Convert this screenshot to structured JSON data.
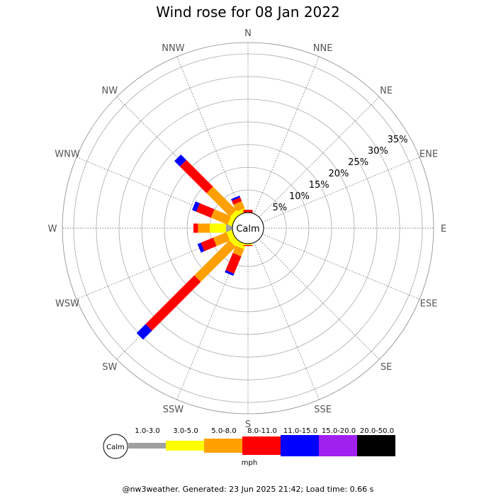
{
  "chart_data": {
    "type": "windrose",
    "title": "Wind rose for 08 Jan 2022",
    "directions": [
      "N",
      "NNE",
      "NE",
      "ENE",
      "E",
      "ESE",
      "SE",
      "SSE",
      "S",
      "SSW",
      "SW",
      "WSW",
      "W",
      "WNW",
      "NW",
      "NNW"
    ],
    "ring_labels": [
      "5%",
      "10%",
      "15%",
      "20%",
      "25%",
      "30%",
      "35%"
    ],
    "ring_values": [
      5,
      10,
      15,
      20,
      25,
      30,
      35
    ],
    "r_max": 37.5,
    "calm_label": "Calm",
    "speed_bins": [
      {
        "range": "1.0-3.0",
        "color": "#a0a0a0"
      },
      {
        "range": "3.0-5.0",
        "color": "#ffff00"
      },
      {
        "range": "5.0-8.0",
        "color": "#ffa000"
      },
      {
        "range": "8.0-11.0",
        "color": "#ff0000"
      },
      {
        "range": "11.0-15.0",
        "color": "#0000ff"
      },
      {
        "range": "15.0-20.0",
        "color": "#a020f0"
      },
      {
        "range": "20.0-50.0",
        "color": "#000000"
      }
    ],
    "units": "mph",
    "series_cumulative": {
      "NNW": [
        0.0,
        0.9,
        2.6,
        3.5,
        3.9,
        3.9,
        3.9
      ],
      "N": [
        0.0,
        0.0,
        0.0,
        0.6,
        0.6,
        0.6,
        0.6
      ],
      "W": [
        1.4,
        5.0,
        7.6,
        8.6,
        8.6,
        8.6,
        8.6
      ],
      "WNW": [
        0.0,
        1.0,
        5.0,
        8.5,
        9.5,
        9.5,
        9.5
      ],
      "NW": [
        0.0,
        1.2,
        8.5,
        16.8,
        18.5,
        18.5,
        18.5
      ],
      "WSW": [
        0.0,
        1.3,
        4.5,
        7.4,
        8.2,
        8.2,
        8.2
      ],
      "SW": [
        0.0,
        1.4,
        12.3,
        27.5,
        30.3,
        30.3,
        30.3
      ],
      "SSW": [
        0.0,
        1.2,
        2.9,
        7.0,
        7.5,
        7.5,
        7.5
      ],
      "S": [
        0.0,
        0.3,
        0.3,
        0.5,
        0.5,
        0.5,
        0.5
      ]
    }
  },
  "footer": "@nw3weather. Generated: 23 Jun 2025 21:42; Load time: 0.66 s"
}
